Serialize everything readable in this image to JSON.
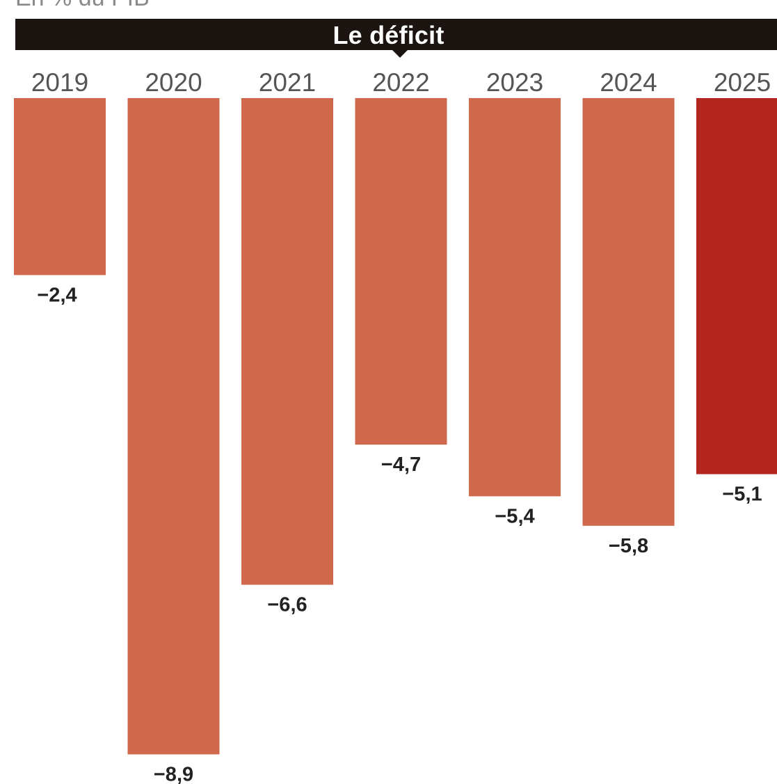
{
  "header": {
    "top_text": "En % du PIB",
    "title": "Le déficit"
  },
  "chart_data": {
    "type": "bar",
    "title": "Le déficit",
    "categories": [
      "2019",
      "2020",
      "2021",
      "2022",
      "2023",
      "2024",
      "2025"
    ],
    "values": [
      -2.4,
      -8.9,
      -6.6,
      -4.7,
      -5.4,
      -5.8,
      -5.1
    ],
    "value_labels": [
      "−2,4",
      "−8,9",
      "−6,6",
      "−4,7",
      "−5,4",
      "−5,8",
      "−5,1"
    ],
    "ylim": [
      -9,
      0
    ],
    "grid": false,
    "legend": "none",
    "colors": {
      "bar": "#d0684e",
      "highlight": "#b3261f",
      "title_bar": "#1c1410"
    },
    "highlight_index": 6
  }
}
